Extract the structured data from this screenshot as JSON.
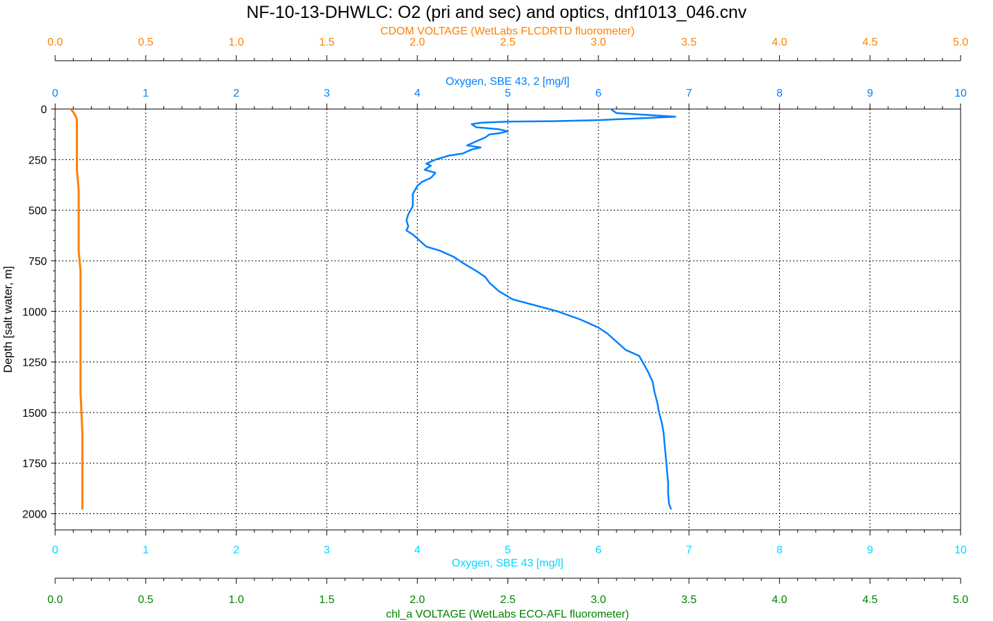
{
  "colors": {
    "cdom": "#ff8000",
    "oxy2": "#0080ff",
    "oxy1": "#00d8ff",
    "chl": "#008000",
    "text": "#000000",
    "grid": "#000000"
  },
  "chart_data": {
    "type": "line",
    "title": "NF-10-13-DHWLC: O2 (pri and sec) and optics, dnf1013_046.cnv",
    "ylabel": "Depth [salt water, m]",
    "ylim": [
      0,
      2080
    ],
    "y_inverted": true,
    "y_ticks": [
      0,
      250,
      500,
      750,
      1000,
      1250,
      1500,
      1750,
      2000
    ],
    "grid": true,
    "axes": {
      "cdom": {
        "label": "CDOM VOLTAGE (WetLabs FLCDRTD fluorometer)",
        "position": "top-outer",
        "range": [
          0,
          5
        ],
        "ticks": [
          "0.0",
          "0.5",
          "1.0",
          "1.5",
          "2.0",
          "2.5",
          "3.0",
          "3.5",
          "4.0",
          "4.5",
          "5.0"
        ]
      },
      "oxy2": {
        "label": "Oxygen, SBE 43, 2 [mg/l]",
        "position": "top-inner",
        "range": [
          0,
          10
        ],
        "ticks": [
          "0",
          "1",
          "2",
          "3",
          "4",
          "5",
          "6",
          "7",
          "8",
          "9",
          "10"
        ]
      },
      "oxy1": {
        "label": "Oxygen, SBE 43 [mg/l]",
        "position": "bottom-inner",
        "range": [
          0,
          10
        ],
        "ticks": [
          "0",
          "1",
          "2",
          "3",
          "4",
          "5",
          "6",
          "7",
          "8",
          "9",
          "10"
        ]
      },
      "chl": {
        "label": "chl_a VOLTAGE (WetLabs ECO-AFL fluorometer)",
        "position": "bottom-outer",
        "range": [
          0,
          5
        ],
        "ticks": [
          "0.0",
          "0.5",
          "1.0",
          "1.5",
          "2.0",
          "2.5",
          "3.0",
          "3.5",
          "4.0",
          "4.5",
          "5.0"
        ]
      }
    },
    "series": [
      {
        "axis": "cdom",
        "points": [
          [
            0.09,
            5
          ],
          [
            0.1,
            15
          ],
          [
            0.11,
            30
          ],
          [
            0.12,
            50
          ],
          [
            0.12,
            75
          ],
          [
            0.12,
            100
          ],
          [
            0.12,
            130
          ],
          [
            0.12,
            160
          ],
          [
            0.12,
            200
          ],
          [
            0.12,
            250
          ],
          [
            0.12,
            300
          ],
          [
            0.13,
            400
          ],
          [
            0.13,
            500
          ],
          [
            0.13,
            600
          ],
          [
            0.13,
            700
          ],
          [
            0.14,
            800
          ],
          [
            0.14,
            900
          ],
          [
            0.14,
            1000
          ],
          [
            0.14,
            1200
          ],
          [
            0.14,
            1400
          ],
          [
            0.15,
            1600
          ],
          [
            0.15,
            1800
          ],
          [
            0.15,
            1900
          ],
          [
            0.15,
            1975
          ]
        ]
      },
      {
        "axis": "oxy2",
        "points": [
          [
            6.15,
            5
          ],
          [
            6.2,
            20
          ],
          [
            6.5,
            28
          ],
          [
            6.85,
            38
          ],
          [
            6.5,
            45
          ],
          [
            6.0,
            55
          ],
          [
            5.5,
            60
          ],
          [
            5.0,
            62
          ],
          [
            4.7,
            68
          ],
          [
            4.6,
            75
          ],
          [
            4.65,
            90
          ],
          [
            4.9,
            100
          ],
          [
            5.0,
            110
          ],
          [
            4.9,
            120
          ],
          [
            4.8,
            125
          ],
          [
            4.75,
            140
          ],
          [
            4.65,
            160
          ],
          [
            4.55,
            180
          ],
          [
            4.7,
            190
          ],
          [
            4.6,
            200
          ],
          [
            4.5,
            220
          ],
          [
            4.35,
            230
          ],
          [
            4.2,
            250
          ],
          [
            4.1,
            270
          ],
          [
            4.15,
            280
          ],
          [
            4.08,
            300
          ],
          [
            4.2,
            315
          ],
          [
            4.15,
            340
          ],
          [
            4.05,
            360
          ],
          [
            4.0,
            380
          ],
          [
            3.95,
            420
          ],
          [
            3.95,
            480
          ],
          [
            3.9,
            520
          ],
          [
            3.88,
            550
          ],
          [
            3.9,
            580
          ],
          [
            3.88,
            600
          ],
          [
            3.95,
            620
          ],
          [
            4.0,
            640
          ],
          [
            4.1,
            680
          ],
          [
            4.25,
            700
          ],
          [
            4.4,
            730
          ],
          [
            4.5,
            760
          ],
          [
            4.65,
            800
          ],
          [
            4.75,
            830
          ],
          [
            4.8,
            860
          ],
          [
            4.9,
            900
          ],
          [
            5.05,
            940
          ],
          [
            5.3,
            970
          ],
          [
            5.55,
            1000
          ],
          [
            5.8,
            1040
          ],
          [
            6.0,
            1080
          ],
          [
            6.1,
            1110
          ],
          [
            6.2,
            1150
          ],
          [
            6.3,
            1190
          ],
          [
            6.45,
            1220
          ],
          [
            6.5,
            1260
          ],
          [
            6.55,
            1300
          ],
          [
            6.6,
            1350
          ],
          [
            6.62,
            1400
          ],
          [
            6.65,
            1450
          ],
          [
            6.67,
            1500
          ],
          [
            6.7,
            1550
          ],
          [
            6.72,
            1600
          ],
          [
            6.73,
            1650
          ],
          [
            6.74,
            1700
          ],
          [
            6.75,
            1750
          ],
          [
            6.76,
            1800
          ],
          [
            6.77,
            1850
          ],
          [
            6.77,
            1900
          ],
          [
            6.78,
            1950
          ],
          [
            6.8,
            1975
          ]
        ]
      }
    ]
  }
}
